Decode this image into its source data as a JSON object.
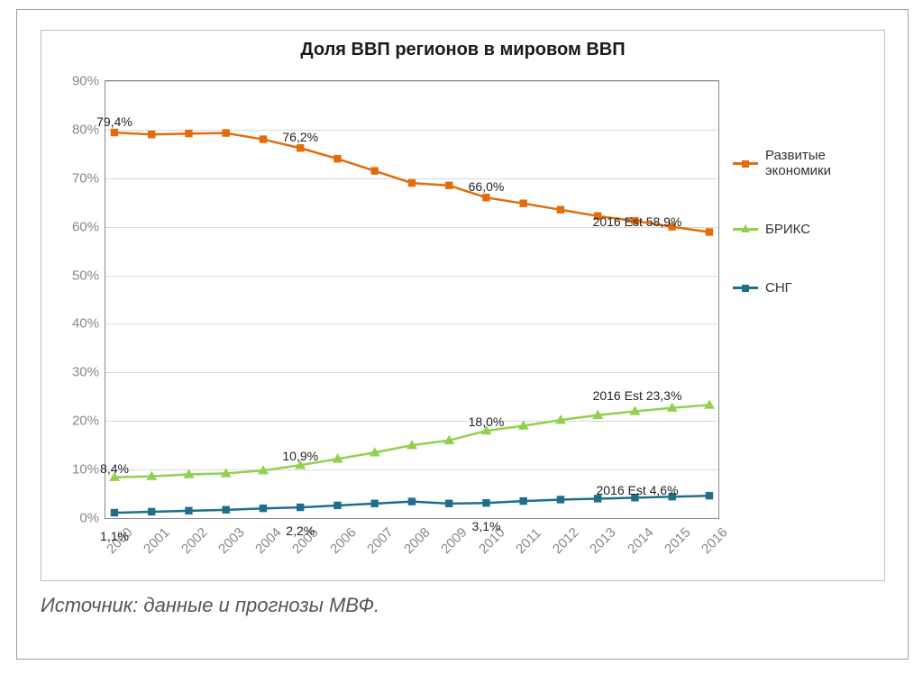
{
  "chart": {
    "type": "line",
    "title": "Доля ВВП регионов в мировом ВВП",
    "title_fontsize": 20,
    "background_color": "#ffffff",
    "grid_color": "#d9d9d9",
    "axis_color": "#888888",
    "tick_font_color": "#888888",
    "tick_fontsize": 15,
    "ylim": [
      0,
      90
    ],
    "ytick_step": 10,
    "yticks": [
      "0%",
      "10%",
      "20%",
      "30%",
      "40%",
      "50%",
      "60%",
      "70%",
      "80%",
      "90%"
    ],
    "categories": [
      "2000",
      "2001",
      "2002",
      "2003",
      "2004",
      "2005",
      "2006",
      "2007",
      "2008",
      "2009",
      "2010",
      "2011",
      "2012",
      "2013",
      "2014",
      "2015",
      "2016"
    ],
    "x_tick_rotation_deg": -45,
    "line_width": 2.5,
    "marker_size": 6,
    "series": [
      {
        "name": "Развитые экономики",
        "color": "#e36c0a",
        "marker": "square",
        "values": [
          79.4,
          79.0,
          79.2,
          79.3,
          78.0,
          76.2,
          74.0,
          71.5,
          69.0,
          68.5,
          66.0,
          64.8,
          63.5,
          62.2,
          61.2,
          60.0,
          58.9
        ],
        "labels": [
          {
            "i": 0,
            "text": "79,4%",
            "dy": -20
          },
          {
            "i": 5,
            "text": "76,2%",
            "dy": -20
          },
          {
            "i": 10,
            "text": "66,0%",
            "dy": -20
          },
          {
            "i": 16,
            "text": "2016 Est 58,9%",
            "dy": -20,
            "dx": -80
          }
        ]
      },
      {
        "name": "БРИКС",
        "color": "#92d050",
        "marker": "triangle",
        "values": [
          8.4,
          8.6,
          9.0,
          9.2,
          9.8,
          10.9,
          12.2,
          13.5,
          15.0,
          16.0,
          18.0,
          19.0,
          20.2,
          21.2,
          22.0,
          22.7,
          23.3
        ],
        "labels": [
          {
            "i": 0,
            "text": "8,4%",
            "dy": -18
          },
          {
            "i": 5,
            "text": "10,9%",
            "dy": -18
          },
          {
            "i": 10,
            "text": "18,0%",
            "dy": -18
          },
          {
            "i": 16,
            "text": "2016 Est 23,3%",
            "dy": -18,
            "dx": -80
          }
        ]
      },
      {
        "name": "СНГ",
        "color": "#1f6f8b",
        "marker": "square",
        "values": [
          1.1,
          1.3,
          1.5,
          1.7,
          2.0,
          2.2,
          2.6,
          3.0,
          3.4,
          3.0,
          3.1,
          3.5,
          3.8,
          4.0,
          4.2,
          4.4,
          4.6
        ],
        "labels": [
          {
            "i": 0,
            "text": "1,1%",
            "dy": 18
          },
          {
            "i": 5,
            "text": "2,2%",
            "dy": 18
          },
          {
            "i": 10,
            "text": "3,1%",
            "dy": 18
          },
          {
            "i": 16,
            "text": "2016 Est 4,6%",
            "dy": -14,
            "dx": -80
          }
        ]
      }
    ],
    "legend": {
      "position": "right",
      "items": [
        "Развитые экономики",
        "БРИКС",
        "СНГ"
      ]
    }
  },
  "source_text": "Источник: данные и прогнозы МВФ.",
  "source_fontsize": 22
}
